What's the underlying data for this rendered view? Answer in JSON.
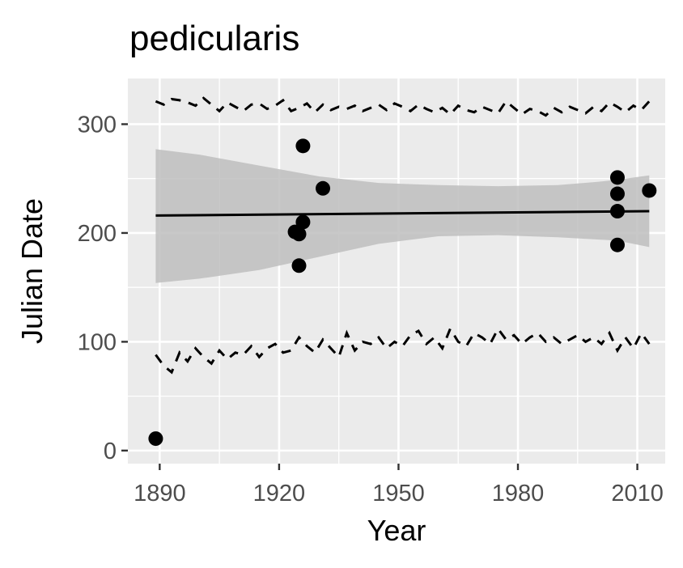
{
  "chart_data": {
    "type": "scatter",
    "title": "pedicularis",
    "xlabel": "Year",
    "ylabel": "Julian Date",
    "xlim": [
      1882,
      2017
    ],
    "ylim": [
      -12,
      342
    ],
    "x_ticks": [
      1890,
      1920,
      1950,
      1980,
      2010
    ],
    "y_ticks": [
      0,
      100,
      200,
      300
    ],
    "x_tick_labels": [
      "1890",
      "1920",
      "1950",
      "1980",
      "2010"
    ],
    "y_tick_labels": [
      "0",
      "100",
      "200",
      "300"
    ],
    "grid": true,
    "legend": "none",
    "colors": {
      "panel_background": "#ebebeb",
      "grid": "#ffffff",
      "points": "#000000",
      "ribbon": "#bebebe",
      "tick_label": "#4d4d4d"
    },
    "points": [
      {
        "x": 1889,
        "y": 11
      },
      {
        "x": 1924,
        "y": 201
      },
      {
        "x": 1925,
        "y": 199
      },
      {
        "x": 1925,
        "y": 170
      },
      {
        "x": 1926,
        "y": 210
      },
      {
        "x": 1926,
        "y": 280
      },
      {
        "x": 1931,
        "y": 241
      },
      {
        "x": 2005,
        "y": 251
      },
      {
        "x": 2005,
        "y": 236
      },
      {
        "x": 2005,
        "y": 220
      },
      {
        "x": 2005,
        "y": 189
      },
      {
        "x": 2013,
        "y": 239
      }
    ],
    "trend_line": {
      "x": [
        1889,
        2013
      ],
      "y": [
        216,
        220
      ]
    },
    "confidence_band": {
      "x": [
        1889,
        1900,
        1915,
        1930,
        1945,
        1960,
        1975,
        1990,
        2000,
        2005,
        2013
      ],
      "lower": [
        154,
        158,
        166,
        178,
        190,
        197,
        198,
        196,
        194,
        193,
        187
      ],
      "upper": [
        277,
        272,
        262,
        252,
        246,
        244,
        243,
        244,
        247,
        249,
        253
      ]
    },
    "upper_dashed_series": {
      "x": [
        1889,
        1891,
        1893,
        1895,
        1897,
        1899,
        1901,
        1903,
        1905,
        1907,
        1909,
        1911,
        1913,
        1915,
        1917,
        1919,
        1921,
        1923,
        1925,
        1927,
        1929,
        1931,
        1933,
        1935,
        1937,
        1939,
        1941,
        1943,
        1945,
        1947,
        1949,
        1951,
        1953,
        1955,
        1957,
        1959,
        1961,
        1963,
        1965,
        1967,
        1969,
        1971,
        1973,
        1975,
        1977,
        1979,
        1981,
        1983,
        1985,
        1987,
        1989,
        1991,
        1993,
        1995,
        1997,
        1999,
        2001,
        2003,
        2005,
        2007,
        2009,
        2011,
        2013
      ],
      "y": [
        321,
        318,
        323,
        322,
        320,
        317,
        324,
        318,
        312,
        320,
        316,
        312,
        318,
        319,
        314,
        317,
        322,
        312,
        315,
        319,
        311,
        318,
        313,
        316,
        314,
        317,
        312,
        315,
        318,
        313,
        319,
        316,
        312,
        318,
        314,
        311,
        315,
        309,
        317,
        313,
        311,
        316,
        313,
        310,
        321,
        315,
        309,
        314,
        312,
        308,
        315,
        311,
        316,
        313,
        310,
        316,
        312,
        320,
        316,
        311,
        317,
        313,
        321
      ]
    },
    "lower_dashed_series": {
      "x": [
        1889,
        1891,
        1893,
        1895,
        1897,
        1899,
        1901,
        1903,
        1905,
        1907,
        1909,
        1911,
        1913,
        1915,
        1917,
        1919,
        1921,
        1923,
        1925,
        1927,
        1929,
        1931,
        1933,
        1935,
        1937,
        1939,
        1941,
        1943,
        1945,
        1947,
        1949,
        1951,
        1953,
        1955,
        1957,
        1959,
        1961,
        1963,
        1965,
        1967,
        1969,
        1971,
        1973,
        1975,
        1977,
        1979,
        1981,
        1983,
        1985,
        1987,
        1989,
        1991,
        1993,
        1995,
        1997,
        1999,
        2001,
        2003,
        2005,
        2007,
        2009,
        2011,
        2013
      ],
      "y": [
        88,
        78,
        72,
        90,
        82,
        94,
        86,
        80,
        92,
        84,
        90,
        88,
        96,
        86,
        94,
        98,
        90,
        92,
        104,
        96,
        90,
        102,
        94,
        86,
        108,
        92,
        100,
        98,
        104,
        94,
        100,
        96,
        106,
        110,
        98,
        104,
        94,
        112,
        100,
        96,
        108,
        104,
        98,
        112,
        102,
        106,
        98,
        104,
        108,
        100,
        104,
        98,
        102,
        106,
        100,
        104,
        98,
        108,
        92,
        104,
        94,
        108,
        98
      ]
    }
  }
}
